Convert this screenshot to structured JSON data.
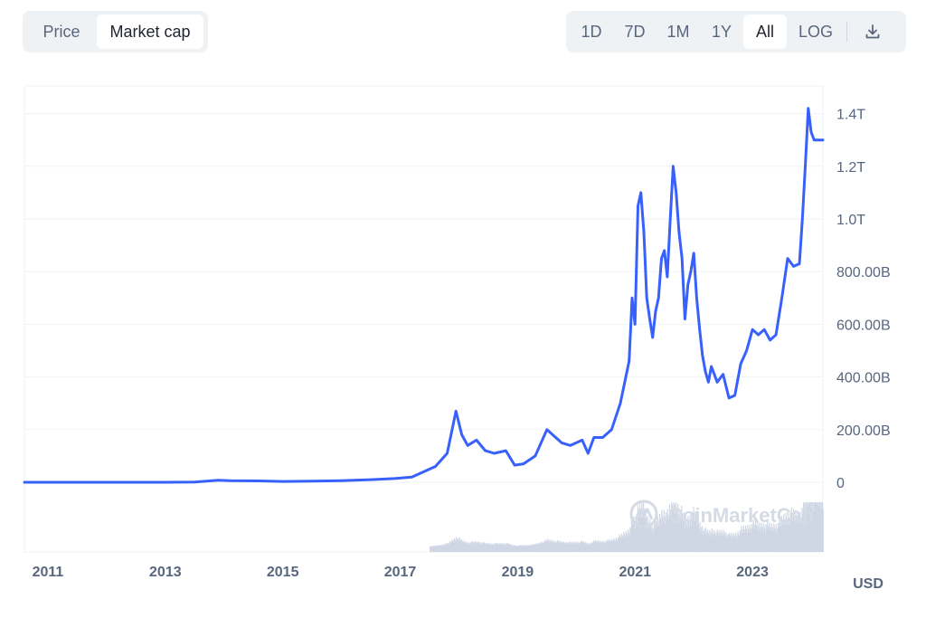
{
  "toolbar": {
    "metric_tabs": [
      {
        "label": "Price",
        "active": false
      },
      {
        "label": "Market cap",
        "active": true
      }
    ],
    "range_tabs": [
      {
        "label": "1D",
        "active": false
      },
      {
        "label": "7D",
        "active": false
      },
      {
        "label": "1M",
        "active": false
      },
      {
        "label": "1Y",
        "active": false
      },
      {
        "label": "All",
        "active": true
      }
    ],
    "scale_label": "LOG",
    "download_icon": "download-icon"
  },
  "colors": {
    "line": "#3861fb",
    "grid": "#eff2f5",
    "volume": "#cfd6e4",
    "axis_text": "#58667e",
    "watermark": "#d5dbe5"
  },
  "watermark": "CoinMarketCap",
  "chart_data": {
    "type": "line",
    "series": [
      {
        "x": [
          2010.6,
          2013.0,
          2013.5,
          2013.9,
          2014.1,
          2014.6,
          2015.0,
          2015.5,
          2016.0,
          2016.5,
          2016.9,
          2017.2,
          2017.4,
          2017.6,
          2017.8,
          2017.95,
          2018.05,
          2018.15,
          2018.3,
          2018.45,
          2018.6,
          2018.8,
          2018.95,
          2019.1,
          2019.3,
          2019.5,
          2019.6,
          2019.75,
          2019.9,
          2020.1,
          2020.2,
          2020.3,
          2020.45,
          2020.6,
          2020.75,
          2020.9,
          2020.95,
          2021.0,
          2021.05,
          2021.1,
          2021.15,
          2021.2,
          2021.25,
          2021.3,
          2021.35,
          2021.4,
          2021.45,
          2021.5,
          2021.55,
          2021.6,
          2021.65,
          2021.7,
          2021.75,
          2021.8,
          2021.85,
          2021.9,
          2021.95,
          2022.0,
          2022.05,
          2022.1,
          2022.15,
          2022.2,
          2022.25,
          2022.3,
          2022.35,
          2022.4,
          2022.5,
          2022.6,
          2022.7,
          2022.8,
          2022.9,
          2023.0,
          2023.1,
          2023.2,
          2023.3,
          2023.4,
          2023.5,
          2023.6,
          2023.7,
          2023.8,
          2023.85,
          2023.9,
          2023.95,
          2024.0,
          2024.05,
          2024.1,
          2024.15,
          2024.2
        ],
        "values": [
          0,
          0,
          1,
          8,
          6,
          5,
          3,
          4,
          6,
          10,
          14,
          20,
          40,
          60,
          110,
          270,
          180,
          140,
          160,
          120,
          110,
          120,
          65,
          70,
          100,
          200,
          180,
          150,
          140,
          160,
          110,
          170,
          170,
          200,
          300,
          460,
          700,
          600,
          1050,
          1100,
          950,
          700,
          620,
          550,
          650,
          700,
          850,
          880,
          780,
          1000,
          1200,
          1100,
          950,
          850,
          620,
          750,
          800,
          870,
          700,
          580,
          480,
          420,
          380,
          440,
          410,
          380,
          410,
          320,
          330,
          450,
          500,
          580,
          560,
          580,
          540,
          560,
          700,
          850,
          820,
          830,
          1000,
          1200,
          1420,
          1330,
          1300,
          1300,
          1300,
          1300
        ]
      }
    ],
    "x_ticks": [
      "2011",
      "2013",
      "2015",
      "2017",
      "2019",
      "2021",
      "2023"
    ],
    "y_ticks": [
      {
        "value": 0,
        "label": "0"
      },
      {
        "value": 200,
        "label": "200.00B"
      },
      {
        "value": 400,
        "label": "400.00B"
      },
      {
        "value": 600,
        "label": "600.00B"
      },
      {
        "value": 800,
        "label": "800.00B"
      },
      {
        "value": 1000,
        "label": "1.0T"
      },
      {
        "value": 1200,
        "label": "1.2T"
      },
      {
        "value": 1400,
        "label": "1.4T"
      }
    ],
    "ylim": [
      0,
      1400
    ],
    "xlim": [
      2010.6,
      2024.2
    ],
    "y_unit": "billions USD",
    "currency_label": "USD",
    "grid": true,
    "volume_bars": true
  }
}
